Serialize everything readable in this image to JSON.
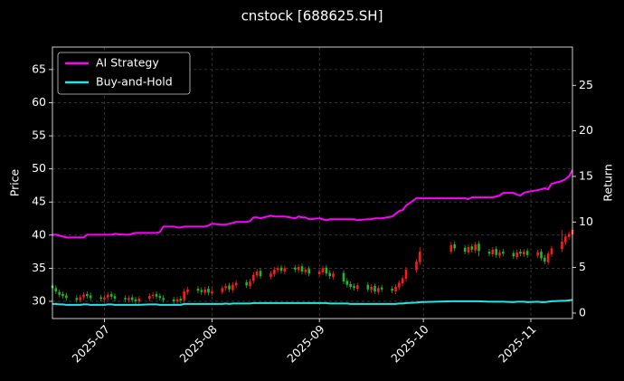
{
  "chart_data": {
    "type": "candlestick",
    "title": "cnstock [688625.SH]",
    "ylabel": "Price",
    "y2label": "Return",
    "up_color": "#ff1a1a",
    "down_color": "#1fb81f",
    "grid": true,
    "legend": "upper left",
    "xlim": [
      "2025-06-16",
      "2025-11-13"
    ],
    "xticks": [
      {
        "value": "2025-07-01",
        "label": "2025-07"
      },
      {
        "value": "2025-08-01",
        "label": "2025-08"
      },
      {
        "value": "2025-09-01",
        "label": "2025-09"
      },
      {
        "value": "2025-10-01",
        "label": "2025-10"
      },
      {
        "value": "2025-11-01",
        "label": "2025-11"
      }
    ],
    "ylim": [
      27.4,
      68.4
    ],
    "yticks": [
      30,
      35,
      40,
      45,
      50,
      55,
      60,
      65
    ],
    "y2lim": [
      -0.6,
      29.2
    ],
    "y2ticks": [
      0,
      5,
      10,
      15,
      20,
      25
    ],
    "x": [
      "2025-06-16",
      "2025-06-17",
      "2025-06-18",
      "2025-06-19",
      "2025-06-20",
      "2025-06-23",
      "2025-06-24",
      "2025-06-25",
      "2025-06-26",
      "2025-06-27",
      "2025-06-30",
      "2025-07-01",
      "2025-07-02",
      "2025-07-03",
      "2025-07-04",
      "2025-07-07",
      "2025-07-08",
      "2025-07-09",
      "2025-07-10",
      "2025-07-11",
      "2025-07-14",
      "2025-07-15",
      "2025-07-16",
      "2025-07-17",
      "2025-07-18",
      "2025-07-21",
      "2025-07-22",
      "2025-07-23",
      "2025-07-24",
      "2025-07-25",
      "2025-07-28",
      "2025-07-29",
      "2025-07-30",
      "2025-07-31",
      "2025-08-01",
      "2025-08-04",
      "2025-08-05",
      "2025-08-06",
      "2025-08-07",
      "2025-08-08",
      "2025-08-11",
      "2025-08-12",
      "2025-08-13",
      "2025-08-14",
      "2025-08-15",
      "2025-08-18",
      "2025-08-19",
      "2025-08-20",
      "2025-08-21",
      "2025-08-22",
      "2025-08-25",
      "2025-08-26",
      "2025-08-27",
      "2025-08-28",
      "2025-08-29",
      "2025-09-01",
      "2025-09-02",
      "2025-09-03",
      "2025-09-04",
      "2025-09-05",
      "2025-09-08",
      "2025-09-09",
      "2025-09-10",
      "2025-09-11",
      "2025-09-12",
      "2025-09-15",
      "2025-09-16",
      "2025-09-17",
      "2025-09-18",
      "2025-09-19",
      "2025-09-22",
      "2025-09-23",
      "2025-09-24",
      "2025-09-25",
      "2025-09-26",
      "2025-09-29",
      "2025-09-30",
      "2025-10-09",
      "2025-10-10",
      "2025-10-13",
      "2025-10-14",
      "2025-10-15",
      "2025-10-16",
      "2025-10-17",
      "2025-10-20",
      "2025-10-21",
      "2025-10-22",
      "2025-10-23",
      "2025-10-24",
      "2025-10-27",
      "2025-10-28",
      "2025-10-29",
      "2025-10-30",
      "2025-10-31",
      "2025-11-03",
      "2025-11-04",
      "2025-11-05",
      "2025-11-06",
      "2025-11-07",
      "2025-11-10",
      "2025-11-11",
      "2025-11-12",
      "2025-11-13"
    ],
    "open": [
      32.4,
      32.0,
      31.4,
      31.1,
      30.9,
      30.5,
      30.2,
      30.6,
      31.1,
      30.9,
      30.6,
      30.3,
      30.6,
      31.1,
      30.8,
      30.5,
      30.2,
      30.6,
      30.3,
      30.0,
      30.4,
      30.8,
      31.1,
      30.8,
      30.5,
      30.3,
      30.0,
      30.4,
      30.2,
      31.4,
      31.9,
      31.7,
      31.3,
      31.9,
      31.2,
      31.4,
      32.0,
      32.4,
      31.7,
      32.4,
      32.9,
      32.3,
      33.1,
      33.9,
      34.6,
      33.7,
      34.1,
      34.7,
      35.1,
      34.5,
      35.1,
      34.7,
      35.3,
      34.4,
      34.9,
      34.1,
      34.4,
      35.1,
      34.3,
      33.7,
      34.3,
      33.1,
      32.6,
      32.3,
      31.9,
      32.5,
      31.7,
      32.3,
      31.4,
      32.1,
      31.9,
      31.5,
      32.1,
      32.7,
      33.4,
      34.7,
      35.9,
      37.5,
      38.6,
      38.1,
      37.4,
      38.3,
      37.7,
      38.7,
      37.5,
      37.1,
      37.9,
      36.9,
      37.5,
      37.3,
      36.7,
      37.5,
      37.1,
      37.6,
      36.9,
      37.5,
      36.6,
      35.9,
      37.1,
      37.9,
      38.9,
      39.7,
      40.1
    ],
    "high": [
      32.8,
      32.4,
      31.8,
      31.5,
      31.3,
      30.9,
      31.0,
      31.4,
      31.5,
      31.3,
      31.0,
      31.0,
      31.4,
      31.5,
      31.2,
      30.9,
      30.9,
      31.0,
      30.7,
      30.8,
      31.2,
      31.4,
      31.5,
      31.2,
      30.9,
      30.7,
      30.7,
      30.8,
      31.9,
      32.2,
      32.3,
      32.1,
      32.2,
      32.3,
      31.9,
      32.4,
      32.7,
      32.8,
      32.9,
      33.2,
      33.3,
      33.4,
      34.4,
      34.9,
      35.0,
      34.6,
      35.2,
      35.4,
      35.5,
      35.4,
      35.5,
      35.6,
      35.7,
      35.2,
      35.3,
      34.9,
      35.4,
      35.5,
      34.7,
      34.6,
      34.7,
      33.5,
      33.0,
      32.7,
      32.8,
      32.9,
      32.6,
      32.7,
      32.4,
      32.5,
      32.3,
      32.6,
      33.2,
      33.9,
      35.2,
      36.4,
      38.2,
      39.0,
      39.0,
      38.5,
      38.6,
      38.7,
      39.0,
      39.1,
      37.9,
      38.2,
      38.3,
      37.8,
      37.9,
      37.7,
      37.8,
      37.9,
      37.9,
      38.0,
      37.8,
      37.9,
      37.0,
      37.6,
      38.4,
      40.8,
      40.2,
      40.6,
      41.2
    ],
    "low": [
      31.6,
      31.1,
      30.6,
      30.4,
      30.1,
      29.8,
      29.8,
      30.2,
      30.4,
      30.1,
      30.0,
      29.9,
      30.2,
      30.3,
      30.0,
      29.9,
      29.8,
      29.8,
      29.6,
      29.6,
      30.0,
      30.4,
      30.3,
      30.1,
      29.8,
      29.6,
      29.6,
      29.7,
      29.8,
      31.0,
      31.2,
      31.0,
      30.9,
      30.9,
      30.8,
      31.0,
      31.6,
      31.4,
      31.3,
      32.0,
      32.0,
      31.9,
      32.7,
      33.5,
      33.4,
      33.3,
      33.7,
      34.3,
      34.2,
      34.1,
      34.4,
      34.3,
      34.1,
      34.0,
      33.8,
      33.7,
      34.0,
      33.8,
      33.4,
      33.3,
      32.6,
      32.1,
      31.8,
      31.6,
      31.5,
      31.4,
      31.3,
      31.1,
      31.0,
      31.4,
      31.2,
      31.1,
      31.7,
      32.3,
      33.0,
      34.3,
      35.5,
      37.1,
      37.6,
      37.1,
      37.0,
      37.4,
      37.3,
      36.8,
      36.8,
      36.7,
      36.6,
      36.5,
      36.8,
      36.4,
      36.3,
      36.8,
      36.7,
      36.6,
      36.5,
      36.1,
      35.6,
      35.5,
      36.7,
      37.5,
      38.5,
      39.3,
      39.7
    ],
    "close": [
      32.0,
      31.5,
      31.0,
      30.8,
      30.5,
      30.2,
      30.6,
      31.0,
      30.8,
      30.5,
      30.4,
      30.6,
      31.0,
      30.7,
      30.4,
      30.3,
      30.5,
      30.2,
      30.0,
      30.4,
      30.8,
      31.0,
      30.7,
      30.5,
      30.2,
      30.0,
      30.3,
      30.1,
      31.5,
      31.8,
      31.6,
      31.4,
      31.8,
      31.3,
      31.5,
      32.0,
      32.3,
      31.8,
      32.5,
      32.8,
      32.4,
      33.0,
      34.0,
      34.5,
      33.8,
      34.2,
      34.8,
      35.0,
      34.6,
      35.0,
      34.8,
      35.2,
      34.5,
      34.8,
      34.2,
      34.5,
      35.0,
      34.2,
      33.8,
      34.2,
      33.0,
      32.5,
      32.2,
      32.0,
      32.4,
      31.8,
      32.2,
      31.5,
      32.0,
      31.8,
      31.6,
      32.2,
      32.8,
      33.5,
      34.8,
      36.0,
      37.5,
      38.5,
      38.0,
      37.5,
      38.2,
      37.8,
      38.6,
      37.6,
      37.2,
      37.8,
      37.0,
      37.4,
      37.2,
      36.8,
      37.4,
      37.2,
      37.5,
      37.0,
      37.4,
      36.5,
      36.0,
      37.2,
      38.0,
      39.0,
      39.8,
      40.2,
      40.8
    ],
    "series": [
      {
        "name": "AI Strategy",
        "color": "#ff00ff",
        "axis": "y2",
        "values": [
          8.6,
          8.6,
          8.5,
          8.4,
          8.3,
          8.3,
          8.3,
          8.3,
          8.6,
          8.6,
          8.6,
          8.6,
          8.6,
          8.6,
          8.7,
          8.6,
          8.6,
          8.7,
          8.8,
          8.8,
          8.8,
          8.8,
          8.8,
          8.9,
          9.5,
          9.5,
          9.4,
          9.4,
          9.5,
          9.5,
          9.5,
          9.5,
          9.5,
          9.6,
          9.8,
          9.7,
          9.7,
          9.8,
          9.9,
          10.0,
          10.0,
          10.1,
          10.5,
          10.5,
          10.4,
          10.7,
          10.6,
          10.6,
          10.6,
          10.6,
          10.4,
          10.6,
          10.5,
          10.5,
          10.3,
          10.4,
          10.3,
          10.2,
          10.3,
          10.3,
          10.3,
          10.3,
          10.3,
          10.3,
          10.2,
          10.3,
          10.3,
          10.4,
          10.4,
          10.4,
          10.6,
          10.9,
          11.2,
          11.3,
          11.8,
          12.6,
          12.6,
          12.6,
          12.6,
          12.6,
          12.5,
          12.7,
          12.7,
          12.7,
          12.7,
          12.7,
          12.8,
          12.9,
          13.2,
          13.2,
          13.0,
          12.9,
          13.2,
          13.3,
          13.5,
          13.6,
          13.7,
          13.6,
          14.2,
          14.5,
          14.7,
          15.0,
          15.7
        ]
      },
      {
        "name": "Buy-and-Hold",
        "color": "#22e5e5",
        "axis": "y2",
        "values": [
          1.0,
          1.0,
          0.95,
          0.95,
          0.9,
          0.9,
          0.9,
          0.95,
          0.95,
          0.9,
          0.9,
          0.9,
          0.95,
          0.95,
          0.9,
          0.9,
          0.9,
          0.9,
          0.9,
          0.9,
          0.95,
          0.95,
          0.95,
          0.9,
          0.9,
          0.9,
          0.9,
          0.9,
          1.0,
          1.0,
          1.0,
          1.0,
          1.0,
          1.0,
          1.0,
          1.0,
          1.05,
          1.0,
          1.05,
          1.05,
          1.05,
          1.05,
          1.1,
          1.1,
          1.1,
          1.1,
          1.1,
          1.1,
          1.1,
          1.1,
          1.1,
          1.1,
          1.1,
          1.1,
          1.1,
          1.1,
          1.1,
          1.1,
          1.05,
          1.05,
          1.05,
          1.05,
          1.0,
          1.0,
          1.0,
          1.0,
          1.0,
          1.0,
          1.0,
          1.0,
          1.0,
          1.0,
          1.05,
          1.05,
          1.1,
          1.15,
          1.2,
          1.3,
          1.3,
          1.3,
          1.3,
          1.3,
          1.3,
          1.3,
          1.25,
          1.25,
          1.25,
          1.25,
          1.25,
          1.2,
          1.25,
          1.25,
          1.25,
          1.2,
          1.25,
          1.2,
          1.2,
          1.25,
          1.3,
          1.35,
          1.35,
          1.4,
          1.45
        ]
      }
    ]
  }
}
